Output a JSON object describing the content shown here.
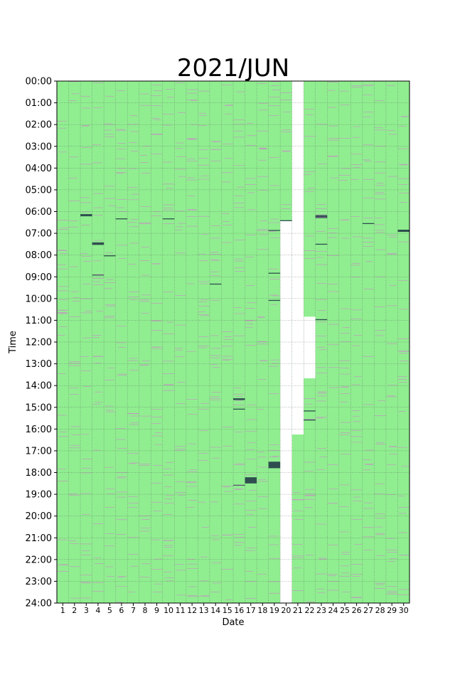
{
  "chart_data": {
    "type": "heatmap",
    "title": "2021/JUN",
    "xlabel": "Date",
    "ylabel": "Time",
    "x_ticks": [
      "1",
      "2",
      "3",
      "4",
      "5",
      "6",
      "7",
      "8",
      "9",
      "10",
      "11",
      "12",
      "13",
      "14",
      "15",
      "16",
      "17",
      "18",
      "19",
      "20",
      "21",
      "22",
      "23",
      "24",
      "25",
      "26",
      "27",
      "28",
      "29",
      "30"
    ],
    "y_ticks": [
      "00:00",
      "01:00",
      "02:00",
      "03:00",
      "04:00",
      "05:00",
      "06:00",
      "07:00",
      "08:00",
      "09:00",
      "10:00",
      "11:00",
      "12:00",
      "13:00",
      "14:00",
      "15:00",
      "16:00",
      "17:00",
      "18:00",
      "19:00",
      "20:00",
      "21:00",
      "22:00",
      "23:00",
      "24:00"
    ],
    "y_range_hours": [
      0,
      24
    ],
    "grid": true,
    "colors": {
      "filled": "#90ee90",
      "event": "#2f4f4f",
      "minor_mark": "#da70d6",
      "grid": "#555555",
      "missing": "#ffffff"
    },
    "missing_data": [
      {
        "date": 20,
        "start": "06:25",
        "end": "24:00"
      },
      {
        "date": 21,
        "start": "00:00",
        "end": "16:15"
      },
      {
        "date": 22,
        "start": "10:50",
        "end": "13:40"
      }
    ],
    "major_events": [
      {
        "date": 3,
        "start": "06:07",
        "end": "06:13"
      },
      {
        "date": 4,
        "start": "07:25",
        "end": "07:32"
      },
      {
        "date": 16,
        "start": "14:35",
        "end": "14:40"
      },
      {
        "date": 17,
        "start": "18:13",
        "end": "18:30"
      },
      {
        "date": 19,
        "start": "17:30",
        "end": "17:48"
      },
      {
        "date": 23,
        "start": "06:10",
        "end": "06:18"
      },
      {
        "date": 30,
        "start": "06:50",
        "end": "06:56"
      }
    ],
    "minor_events": [
      {
        "date": 4,
        "time": "08:55"
      },
      {
        "date": 5,
        "time": "08:02"
      },
      {
        "date": 6,
        "time": "06:20"
      },
      {
        "date": 10,
        "time": "06:20"
      },
      {
        "date": 14,
        "time": "09:20"
      },
      {
        "date": 16,
        "time": "15:05"
      },
      {
        "date": 16,
        "time": "18:35"
      },
      {
        "date": 19,
        "time": "06:52"
      },
      {
        "date": 19,
        "time": "08:50"
      },
      {
        "date": 19,
        "time": "10:05"
      },
      {
        "date": 20,
        "time": "06:25"
      },
      {
        "date": 22,
        "time": "15:10"
      },
      {
        "date": 22,
        "time": "15:35"
      },
      {
        "date": 23,
        "time": "07:30"
      },
      {
        "date": 23,
        "time": "10:58"
      },
      {
        "date": 27,
        "time": "06:33"
      }
    ]
  }
}
